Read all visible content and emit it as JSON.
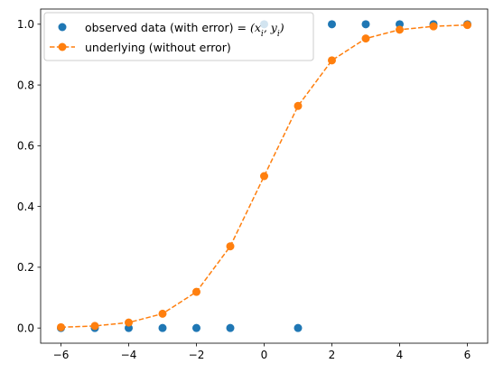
{
  "chart_data": {
    "type": "scatter",
    "xlim": [
      -6.6,
      6.6
    ],
    "ylim": [
      -0.05,
      1.05
    ],
    "xticks": [
      -6,
      -4,
      -2,
      0,
      2,
      4,
      6
    ],
    "xtick_labels": [
      "−6",
      "−4",
      "−2",
      "0",
      "2",
      "4",
      "6"
    ],
    "yticks": [
      0.0,
      0.2,
      0.4,
      0.6,
      0.8,
      1.0
    ],
    "ytick_labels": [
      "0.0",
      "0.2",
      "0.4",
      "0.6",
      "0.8",
      "1.0"
    ],
    "grid": false,
    "legend_position": "top-left",
    "series": [
      {
        "name": "observed data (with error) = ",
        "name_math": "(x_i, y_i)",
        "style": "markers",
        "color": "#1f77b4",
        "x": [
          -6,
          -5,
          -4,
          -3,
          -2,
          -1,
          0,
          1,
          2,
          3,
          4,
          5,
          6
        ],
        "y": [
          0,
          0,
          0,
          0,
          0,
          0,
          1,
          0,
          1,
          1,
          1,
          1,
          1
        ]
      },
      {
        "name": "underlying (without error)",
        "style": "dashed-line-markers",
        "color": "#ff7f0e",
        "x": [
          -6,
          -5,
          -4,
          -3,
          -2,
          -1,
          0,
          1,
          2,
          3,
          4,
          5,
          6
        ],
        "y": [
          0.0025,
          0.0067,
          0.018,
          0.047,
          0.119,
          0.269,
          0.5,
          0.731,
          0.881,
          0.953,
          0.982,
          0.993,
          0.9975
        ]
      }
    ]
  }
}
